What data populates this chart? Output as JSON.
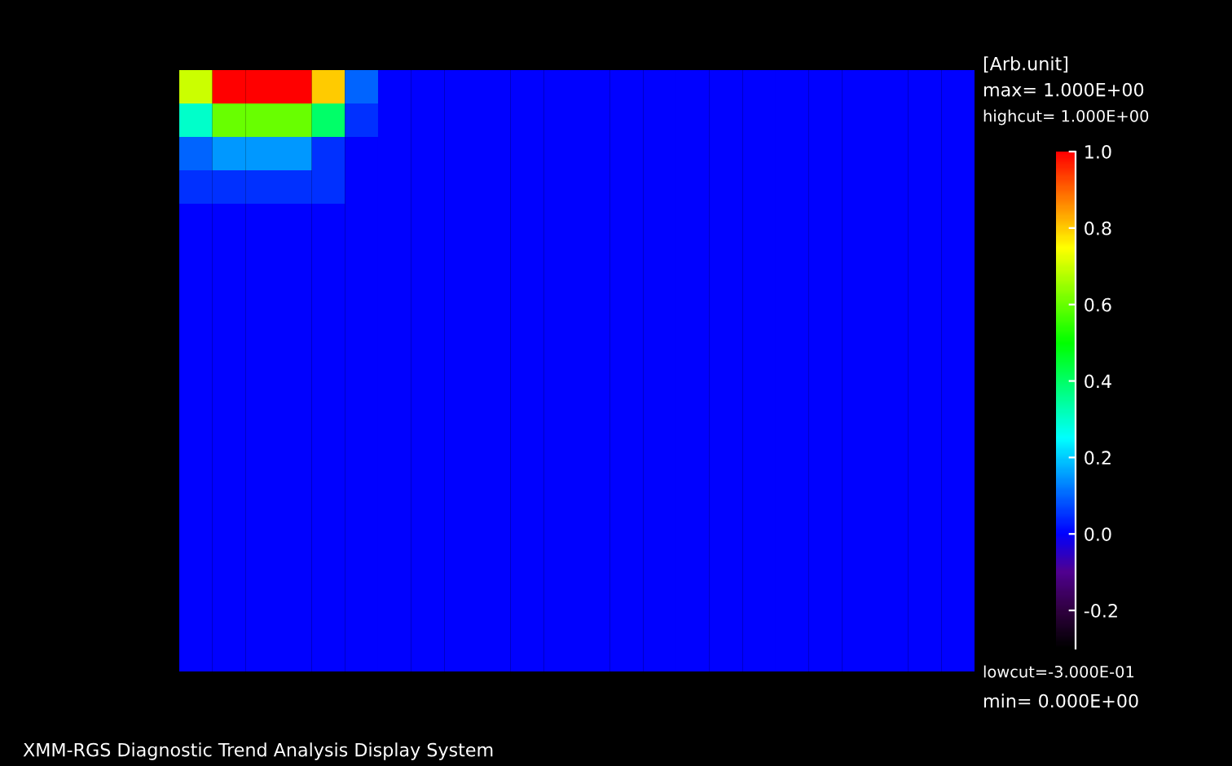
{
  "chart_data": {
    "type": "heatmap",
    "categories": [
      null,
      null,
      null,
      null,
      null,
      null,
      null,
      null,
      null,
      null,
      null,
      null,
      null,
      null,
      null,
      null,
      null,
      null,
      null,
      null,
      null,
      null,
      null,
      null
    ],
    "y_categories": [
      null,
      null,
      null,
      null,
      null,
      null,
      null,
      null,
      null,
      null,
      null,
      null,
      null,
      null,
      null,
      null,
      null,
      null
    ],
    "cells": [
      [
        0.7,
        1.0,
        1.0,
        1.0,
        0.8,
        0.1,
        0,
        0,
        0,
        0,
        0,
        0,
        0,
        0,
        0,
        0,
        0,
        0,
        0,
        0,
        0,
        0,
        0,
        0
      ],
      [
        0.3,
        0.6,
        0.6,
        0.6,
        0.4,
        0.05,
        0,
        0,
        0,
        0,
        0,
        0,
        0,
        0,
        0,
        0,
        0,
        0,
        0,
        0,
        0,
        0,
        0,
        0
      ],
      [
        0.1,
        0.15,
        0.15,
        0.15,
        0.05,
        0,
        0,
        0,
        0,
        0,
        0,
        0,
        0,
        0,
        0,
        0,
        0,
        0,
        0,
        0,
        0,
        0,
        0,
        0
      ],
      [
        0.05,
        0.05,
        0.05,
        0.05,
        0.05,
        0,
        0,
        0,
        0,
        0,
        0,
        0,
        0,
        0,
        0,
        0,
        0,
        0,
        0,
        0,
        0,
        0,
        0,
        0
      ],
      [
        0,
        0,
        0,
        0,
        0,
        0,
        0,
        0,
        0,
        0,
        0,
        0,
        0,
        0,
        0,
        0,
        0,
        0,
        0,
        0,
        0,
        0,
        0,
        0
      ],
      [
        0,
        0,
        0,
        0,
        0,
        0,
        0,
        0,
        0,
        0,
        0,
        0,
        0,
        0,
        0,
        0,
        0,
        0,
        0,
        0,
        0,
        0,
        0,
        0
      ],
      [
        0,
        0,
        0,
        0,
        0,
        0,
        0,
        0,
        0,
        0,
        0,
        0,
        0,
        0,
        0,
        0,
        0,
        0,
        0,
        0,
        0,
        0,
        0,
        0
      ],
      [
        0,
        0,
        0,
        0,
        0,
        0,
        0,
        0,
        0,
        0,
        0,
        0,
        0,
        0,
        0,
        0,
        0,
        0,
        0,
        0,
        0,
        0,
        0,
        0
      ],
      [
        0,
        0,
        0,
        0,
        0,
        0,
        0,
        0,
        0,
        0,
        0,
        0,
        0,
        0,
        0,
        0,
        0,
        0,
        0,
        0,
        0,
        0,
        0,
        0
      ],
      [
        0,
        0,
        0,
        0,
        0,
        0,
        0,
        0,
        0,
        0,
        0,
        0,
        0,
        0,
        0,
        0,
        0,
        0,
        0,
        0,
        0,
        0,
        0,
        0
      ],
      [
        0,
        0,
        0,
        0,
        0,
        0,
        0,
        0,
        0,
        0,
        0,
        0,
        0,
        0,
        0,
        0,
        0,
        0,
        0,
        0,
        0,
        0,
        0,
        0
      ],
      [
        0,
        0,
        0,
        0,
        0,
        0,
        0,
        0,
        0,
        0,
        0,
        0,
        0,
        0,
        0,
        0,
        0,
        0,
        0,
        0,
        0,
        0,
        0,
        0
      ],
      [
        0,
        0,
        0,
        0,
        0,
        0,
        0,
        0,
        0,
        0,
        0,
        0,
        0,
        0,
        0,
        0,
        0,
        0,
        0,
        0,
        0,
        0,
        0,
        0
      ],
      [
        0,
        0,
        0,
        0,
        0,
        0,
        0,
        0,
        0,
        0,
        0,
        0,
        0,
        0,
        0,
        0,
        0,
        0,
        0,
        0,
        0,
        0,
        0,
        0
      ],
      [
        0,
        0,
        0,
        0,
        0,
        0,
        0,
        0,
        0,
        0,
        0,
        0,
        0,
        0,
        0,
        0,
        0,
        0,
        0,
        0,
        0,
        0,
        0,
        0
      ],
      [
        0,
        0,
        0,
        0,
        0,
        0,
        0,
        0,
        0,
        0,
        0,
        0,
        0,
        0,
        0,
        0,
        0,
        0,
        0,
        0,
        0,
        0,
        0,
        0
      ],
      [
        0,
        0,
        0,
        0,
        0,
        0,
        0,
        0,
        0,
        0,
        0,
        0,
        0,
        0,
        0,
        0,
        0,
        0,
        0,
        0,
        0,
        0,
        0,
        0
      ],
      [
        0,
        0,
        0,
        0,
        0,
        0,
        0,
        0,
        0,
        0,
        0,
        0,
        0,
        0,
        0,
        0,
        0,
        0,
        0,
        0,
        0,
        0,
        0,
        0
      ]
    ],
    "clim": [
      -0.3,
      1.0
    ],
    "cticks": [
      {
        "value": -0.2,
        "label": "-0.2"
      },
      {
        "value": 0,
        "label": "0.0"
      },
      {
        "value": 0.2,
        "label": "0.2"
      },
      {
        "value": 0.4,
        "label": "0.4"
      },
      {
        "value": 0.6,
        "label": "0.6"
      },
      {
        "value": 0.8,
        "label": "0.8"
      },
      {
        "value": 1,
        "label": "1.0"
      }
    ],
    "clabel": "[Arb.unit]",
    "annotations": [
      "max= 1.000E+00",
      "highcut= 1.000E+00",
      "lowcut=-3.000E-01",
      "min= 0.000E+00",
      "XMM-RGS Diagnostic Trend Analysis Display System"
    ]
  }
}
